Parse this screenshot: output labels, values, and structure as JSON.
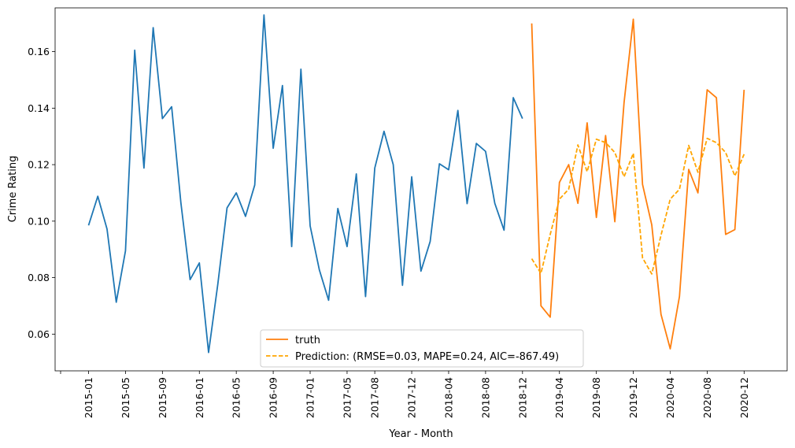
{
  "chart_data": {
    "type": "line",
    "xlabel": "Year - Month",
    "ylabel": "Crime Rating",
    "ylim": [
      0.047,
      0.1755
    ],
    "yticks": [
      0.06,
      0.08,
      0.1,
      0.12,
      0.14,
      0.16
    ],
    "ytick_labels": [
      "0.06",
      "0.08",
      "0.10",
      "0.12",
      "0.14",
      "0.16"
    ],
    "xtick_labels": [
      "2015-01",
      "2015-05",
      "2015-09",
      "2016-01",
      "2016-05",
      "2016-09",
      "2017-01",
      "2017-05",
      "2017-08",
      "2017-12",
      "2018-04",
      "2018-08",
      "2018-12",
      "2019-04",
      "2019-08",
      "2019-12",
      "2020-04",
      "2020-08",
      "2020-12"
    ],
    "grid": false,
    "legend_position": "lower center",
    "series": [
      {
        "name": "",
        "color": "#1f77b4",
        "style": "solid",
        "values": [
          0.0985,
          0.1088,
          0.0972,
          0.0713,
          0.0895,
          0.1605,
          0.1188,
          0.1685,
          0.1363,
          0.1405,
          0.1065,
          0.0793,
          0.0852,
          0.0535,
          0.0777,
          0.1047,
          0.11,
          0.1017,
          0.1128,
          0.173,
          0.1258,
          0.148,
          0.091,
          0.1538,
          0.0983,
          0.0827,
          0.072,
          0.1045,
          0.091,
          0.1167,
          0.0733,
          0.1188,
          0.1318,
          0.12,
          0.0773,
          0.1157,
          0.0823,
          0.0928,
          0.1203,
          0.1182,
          0.1392,
          0.1062,
          0.1275,
          0.1247,
          0.1063,
          0.0968,
          0.1437,
          0.1363
        ]
      },
      {
        "name": "truth",
        "color": "#ff7f0e",
        "style": "solid",
        "values": [
          0.17,
          0.07,
          0.066,
          0.1137,
          0.12,
          0.1063,
          0.1348,
          0.1013,
          0.1303,
          0.0998,
          0.142,
          0.1715,
          0.113,
          0.0987,
          0.067,
          0.0548,
          0.0733,
          0.1183,
          0.11,
          0.1465,
          0.1437,
          0.0953,
          0.097,
          0.1465
        ]
      },
      {
        "name": "Prediction: (RMSE=0.03, MAPE=0.24, AIC=-867.49)",
        "color": "#ffa500",
        "style": "dashed",
        "values": [
          0.0867,
          0.0815,
          0.0953,
          0.1078,
          0.1113,
          0.127,
          0.1175,
          0.129,
          0.1278,
          0.1243,
          0.1157,
          0.124,
          0.087,
          0.0813,
          0.095,
          0.1078,
          0.1113,
          0.1268,
          0.1173,
          0.1293,
          0.1278,
          0.1243,
          0.116,
          0.1237
        ]
      }
    ]
  }
}
